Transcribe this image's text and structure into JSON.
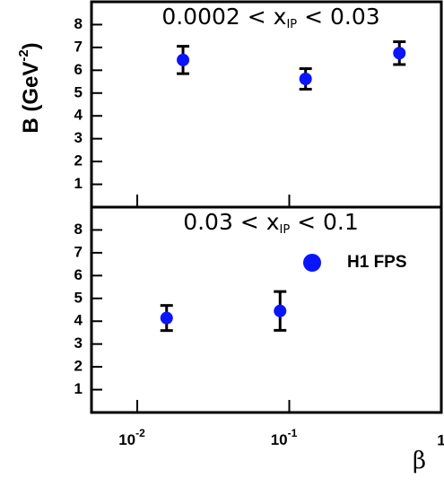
{
  "chart_data": [
    {
      "type": "scatter",
      "ylabel": {
        "text": "B (GeV",
        "sup": "-2",
        "tail": ")"
      },
      "annotation": {
        "text": "0.0002 < x",
        "sub": "IP",
        "tail": " < 0.03"
      },
      "xlim": [
        0.005,
        1
      ],
      "log_x": true,
      "ylim": [
        0,
        9
      ],
      "yticks": [
        1,
        2,
        3,
        4,
        5,
        6,
        7,
        8
      ],
      "series": [
        {
          "name": "H1 FPS",
          "color": "#0a14ff",
          "x": [
            0.02,
            0.128,
            0.53
          ],
          "values": [
            6.45,
            5.62,
            6.75
          ],
          "errors": [
            0.6,
            0.45,
            0.5
          ]
        }
      ]
    },
    {
      "type": "scatter",
      "xlabel": "β",
      "annotation": {
        "text": "0.03 < x",
        "sub": "IP",
        "tail": " < 0.1"
      },
      "xlim": [
        0.005,
        1
      ],
      "log_x": true,
      "xticks": [
        {
          "value": 0.01,
          "label": "10",
          "exponent": "-2"
        },
        {
          "value": 0.1,
          "label": "10",
          "exponent": "-1"
        },
        1
      ],
      "ylim": [
        0,
        9
      ],
      "yticks": [
        1,
        2,
        3,
        4,
        5,
        6,
        7,
        8
      ],
      "legend": "upper right",
      "series": [
        {
          "name": "H1 FPS",
          "color": "#0a14ff",
          "x": [
            0.0156,
            0.087
          ],
          "values": [
            4.14,
            4.45
          ],
          "errors": [
            0.55,
            0.85
          ]
        }
      ]
    }
  ]
}
